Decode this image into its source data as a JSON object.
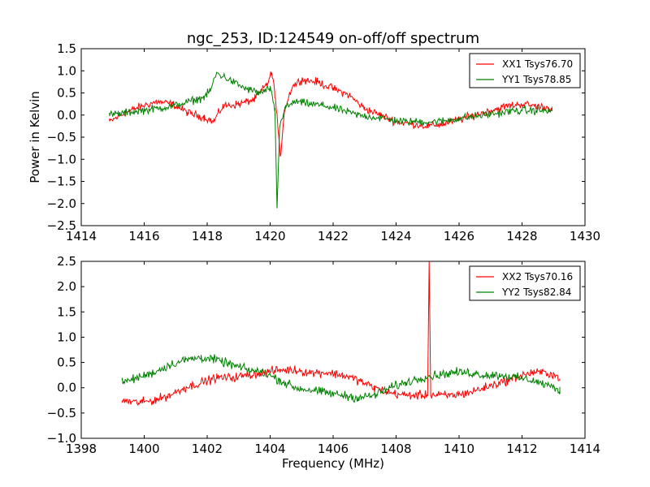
{
  "chart_data": [
    {
      "type": "line",
      "title": "ngc_253, ID:124549 on-off/off spectrum",
      "xlabel": "",
      "ylabel": "Power in Kelvin",
      "xlim": [
        1414,
        1430
      ],
      "ylim": [
        -2.5,
        1.5
      ],
      "xticks": [
        1414,
        1416,
        1418,
        1420,
        1422,
        1424,
        1426,
        1428,
        1430
      ],
      "yticks": [
        -2.5,
        -2.0,
        -1.5,
        -1.0,
        -0.5,
        0.0,
        0.5,
        1.0,
        1.5
      ],
      "xtick_labels": [
        "1414",
        "1416",
        "1418",
        "1420",
        "1422",
        "1424",
        "1426",
        "1428",
        "1430"
      ],
      "ytick_labels": [
        "−2.5",
        "−2.0",
        "−1.5",
        "−1.0",
        "−0.5",
        "0.0",
        "0.5",
        "1.0",
        "1.5"
      ],
      "grid": false,
      "legend_position": "top-right",
      "series": [
        {
          "name": "XX1 Tsys76.70",
          "color": "#ff0000",
          "x": [
            1414.9,
            1415.4,
            1415.9,
            1416.4,
            1416.9,
            1417.4,
            1417.9,
            1418.2,
            1418.5,
            1419.0,
            1419.5,
            1419.9,
            1420.05,
            1420.15,
            1420.25,
            1420.32,
            1420.45,
            1420.7,
            1421.0,
            1421.5,
            1422.0,
            1422.5,
            1423.0,
            1423.5,
            1424.0,
            1424.5,
            1425.0,
            1425.5,
            1426.0,
            1426.5,
            1427.0,
            1427.5,
            1428.0,
            1428.5,
            1428.95
          ],
          "y": [
            -0.15,
            0.05,
            0.2,
            0.3,
            0.25,
            0.05,
            -0.05,
            -0.15,
            0.2,
            0.25,
            0.35,
            0.7,
            0.95,
            0.5,
            -0.3,
            -1.0,
            0.1,
            0.65,
            0.8,
            0.75,
            0.6,
            0.45,
            0.15,
            0.0,
            -0.15,
            -0.2,
            -0.25,
            -0.2,
            -0.1,
            0.0,
            0.1,
            0.2,
            0.25,
            0.2,
            0.15
          ]
        },
        {
          "name": "YY1 Tsys78.85",
          "color": "#008000",
          "x": [
            1414.9,
            1415.4,
            1415.9,
            1416.4,
            1416.9,
            1417.4,
            1417.9,
            1418.1,
            1418.3,
            1418.7,
            1419.2,
            1419.7,
            1420.0,
            1420.15,
            1420.22,
            1420.3,
            1420.45,
            1420.8,
            1421.3,
            1421.8,
            1422.3,
            1422.8,
            1423.3,
            1423.8,
            1424.3,
            1424.8,
            1425.3,
            1425.8,
            1426.3,
            1426.8,
            1427.3,
            1427.8,
            1428.3,
            1428.95
          ],
          "y": [
            0.0,
            0.05,
            0.1,
            0.15,
            0.2,
            0.3,
            0.4,
            0.55,
            0.95,
            0.8,
            0.6,
            0.5,
            0.6,
            0.1,
            -2.1,
            -0.3,
            0.15,
            0.3,
            0.25,
            0.2,
            0.1,
            0.0,
            -0.05,
            -0.1,
            -0.15,
            -0.15,
            -0.15,
            -0.1,
            -0.05,
            0.0,
            0.05,
            0.1,
            0.1,
            0.1
          ]
        }
      ]
    },
    {
      "type": "line",
      "title": "",
      "xlabel": "Frequency (MHz)",
      "ylabel": "",
      "xlim": [
        1398,
        1414
      ],
      "ylim": [
        -1.0,
        2.5
      ],
      "xticks": [
        1398,
        1400,
        1402,
        1404,
        1406,
        1408,
        1410,
        1412,
        1414
      ],
      "yticks": [
        -1.0,
        -0.5,
        0.0,
        0.5,
        1.0,
        1.5,
        2.0,
        2.5
      ],
      "xtick_labels": [
        "1398",
        "1400",
        "1402",
        "1404",
        "1406",
        "1408",
        "1410",
        "1412",
        "1414"
      ],
      "ytick_labels": [
        "−1.0",
        "−0.5",
        "0.0",
        "0.5",
        "1.0",
        "1.5",
        "2.0",
        "2.5"
      ],
      "grid": false,
      "legend_position": "top-right",
      "series": [
        {
          "name": "XX2 Tsys70.16",
          "color": "#ff0000",
          "x": [
            1399.3,
            1399.8,
            1400.3,
            1400.8,
            1401.3,
            1401.8,
            1402.3,
            1402.8,
            1403.3,
            1403.8,
            1404.3,
            1404.8,
            1405.3,
            1405.8,
            1406.3,
            1406.8,
            1407.3,
            1407.8,
            1408.3,
            1408.8,
            1409.0,
            1409.05,
            1409.1,
            1409.3,
            1409.8,
            1410.3,
            1410.8,
            1411.3,
            1411.8,
            1412.3,
            1412.8,
            1413.2
          ],
          "y": [
            -0.25,
            -0.3,
            -0.25,
            -0.15,
            0.0,
            0.1,
            0.2,
            0.2,
            0.25,
            0.3,
            0.35,
            0.35,
            0.3,
            0.3,
            0.25,
            0.15,
            0.0,
            -0.1,
            -0.15,
            -0.15,
            -0.15,
            2.5,
            -0.15,
            -0.15,
            -0.15,
            -0.1,
            0.0,
            0.1,
            0.2,
            0.3,
            0.3,
            0.2
          ]
        },
        {
          "name": "YY2 Tsys82.84",
          "color": "#008000",
          "x": [
            1399.3,
            1399.8,
            1400.3,
            1400.8,
            1401.3,
            1401.8,
            1402.3,
            1402.8,
            1403.3,
            1403.8,
            1404.3,
            1404.8,
            1405.3,
            1405.8,
            1406.3,
            1406.8,
            1407.3,
            1407.8,
            1408.3,
            1408.8,
            1409.3,
            1409.8,
            1410.3,
            1410.8,
            1411.3,
            1411.8,
            1412.3,
            1412.8,
            1413.2
          ],
          "y": [
            0.1,
            0.2,
            0.3,
            0.45,
            0.55,
            0.6,
            0.55,
            0.45,
            0.35,
            0.3,
            0.15,
            0.0,
            -0.05,
            -0.1,
            -0.15,
            -0.2,
            -0.15,
            0.0,
            0.1,
            0.2,
            0.25,
            0.3,
            0.3,
            0.25,
            0.25,
            0.2,
            0.15,
            0.05,
            -0.05
          ]
        }
      ]
    }
  ]
}
